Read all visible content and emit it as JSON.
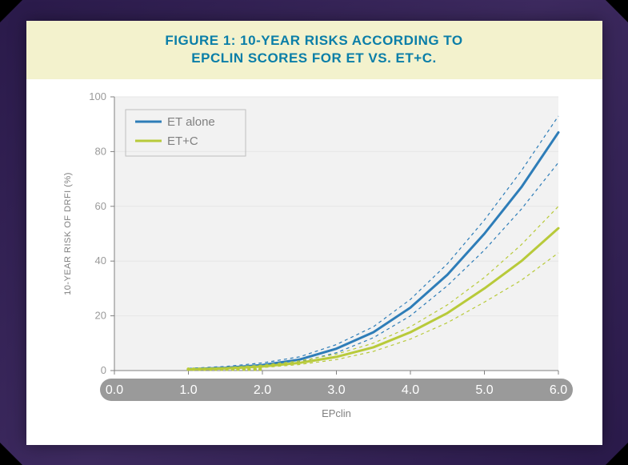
{
  "slide": {
    "title_line1": "FIGURE 1: 10-YEAR RISKS ACCORDING TO",
    "title_line2": "EPCLIN SCORES FOR ET VS. ET+C.",
    "title_color": "#0a7ea8",
    "title_bg": "#f3f2cd",
    "title_fontsize": 17
  },
  "chart": {
    "type": "line",
    "background_color": "#f2f2f2",
    "outer_background": "#ffffff",
    "grid_color": "#e6e6e6",
    "axis_line_color": "#808080",
    "tick_text_color": "#9a9a9a",
    "label_text_color": "#808080",
    "xlabel": "EPclin",
    "ylabel": "10-YEAR RISK OF DRFI (%)",
    "xlim": [
      0.0,
      6.0
    ],
    "ylim": [
      0,
      100
    ],
    "xticks": [
      0.0,
      1.0,
      2.0,
      3.0,
      4.0,
      5.0,
      6.0
    ],
    "yticks": [
      0,
      20,
      40,
      60,
      80,
      100
    ],
    "xtick_band_color": "#9a9a9a",
    "legend": {
      "items": [
        {
          "label": "ET alone",
          "color": "#2e7db8"
        },
        {
          "label": "ET+C",
          "color": "#b8ca3a"
        }
      ],
      "box_border": "#bfbfbf",
      "font_color": "#808080"
    },
    "series": [
      {
        "name": "ET alone",
        "color": "#2e7db8",
        "line_width": 3,
        "points": [
          [
            1.0,
            0.5
          ],
          [
            1.5,
            1.0
          ],
          [
            2.0,
            2.0
          ],
          [
            2.5,
            4.0
          ],
          [
            3.0,
            8.0
          ],
          [
            3.5,
            14.0
          ],
          [
            4.0,
            23.0
          ],
          [
            4.5,
            35.0
          ],
          [
            5.0,
            50.0
          ],
          [
            5.5,
            67.0
          ],
          [
            6.0,
            87.0
          ]
        ],
        "ci_upper": [
          [
            1.0,
            0.8
          ],
          [
            1.5,
            1.5
          ],
          [
            2.0,
            2.8
          ],
          [
            2.5,
            5.0
          ],
          [
            3.0,
            9.5
          ],
          [
            3.5,
            16.0
          ],
          [
            4.0,
            26.0
          ],
          [
            4.5,
            39.0
          ],
          [
            5.0,
            55.0
          ],
          [
            5.5,
            73.0
          ],
          [
            6.0,
            93.0
          ]
        ],
        "ci_lower": [
          [
            1.0,
            0.3
          ],
          [
            1.5,
            0.7
          ],
          [
            2.0,
            1.5
          ],
          [
            2.5,
            3.2
          ],
          [
            3.0,
            6.5
          ],
          [
            3.5,
            12.0
          ],
          [
            4.0,
            20.0
          ],
          [
            4.5,
            31.0
          ],
          [
            5.0,
            44.0
          ],
          [
            5.5,
            59.0
          ],
          [
            6.0,
            76.0
          ]
        ]
      },
      {
        "name": "ET+C",
        "color": "#b8ca3a",
        "line_width": 3,
        "points": [
          [
            1.0,
            0.4
          ],
          [
            1.5,
            0.8
          ],
          [
            2.0,
            1.5
          ],
          [
            2.5,
            2.8
          ],
          [
            3.0,
            5.0
          ],
          [
            3.5,
            8.5
          ],
          [
            4.0,
            14.0
          ],
          [
            4.5,
            21.0
          ],
          [
            5.0,
            30.0
          ],
          [
            5.5,
            40.0
          ],
          [
            6.0,
            52.0
          ]
        ],
        "ci_upper": [
          [
            1.0,
            0.6
          ],
          [
            1.5,
            1.1
          ],
          [
            2.0,
            2.0
          ],
          [
            2.5,
            3.5
          ],
          [
            3.0,
            6.0
          ],
          [
            3.5,
            10.0
          ],
          [
            4.0,
            16.0
          ],
          [
            4.5,
            24.0
          ],
          [
            5.0,
            34.0
          ],
          [
            5.5,
            46.0
          ],
          [
            6.0,
            60.0
          ]
        ],
        "ci_lower": [
          [
            1.0,
            0.3
          ],
          [
            1.5,
            0.6
          ],
          [
            2.0,
            1.1
          ],
          [
            2.5,
            2.2
          ],
          [
            3.0,
            4.0
          ],
          [
            3.5,
            7.0
          ],
          [
            4.0,
            11.5
          ],
          [
            4.5,
            17.5
          ],
          [
            5.0,
            25.0
          ],
          [
            5.5,
            33.0
          ],
          [
            6.0,
            43.0
          ]
        ]
      }
    ],
    "markers": {
      "color": "#b8ca3a",
      "x_values": [
        1.0,
        1.07,
        1.15,
        1.22,
        1.3,
        1.37,
        1.45,
        1.52,
        1.6,
        1.67,
        1.75,
        1.82,
        1.9,
        1.97
      ],
      "y": 0.5,
      "radius": 2.2
    },
    "dash_pattern": "4,4"
  }
}
